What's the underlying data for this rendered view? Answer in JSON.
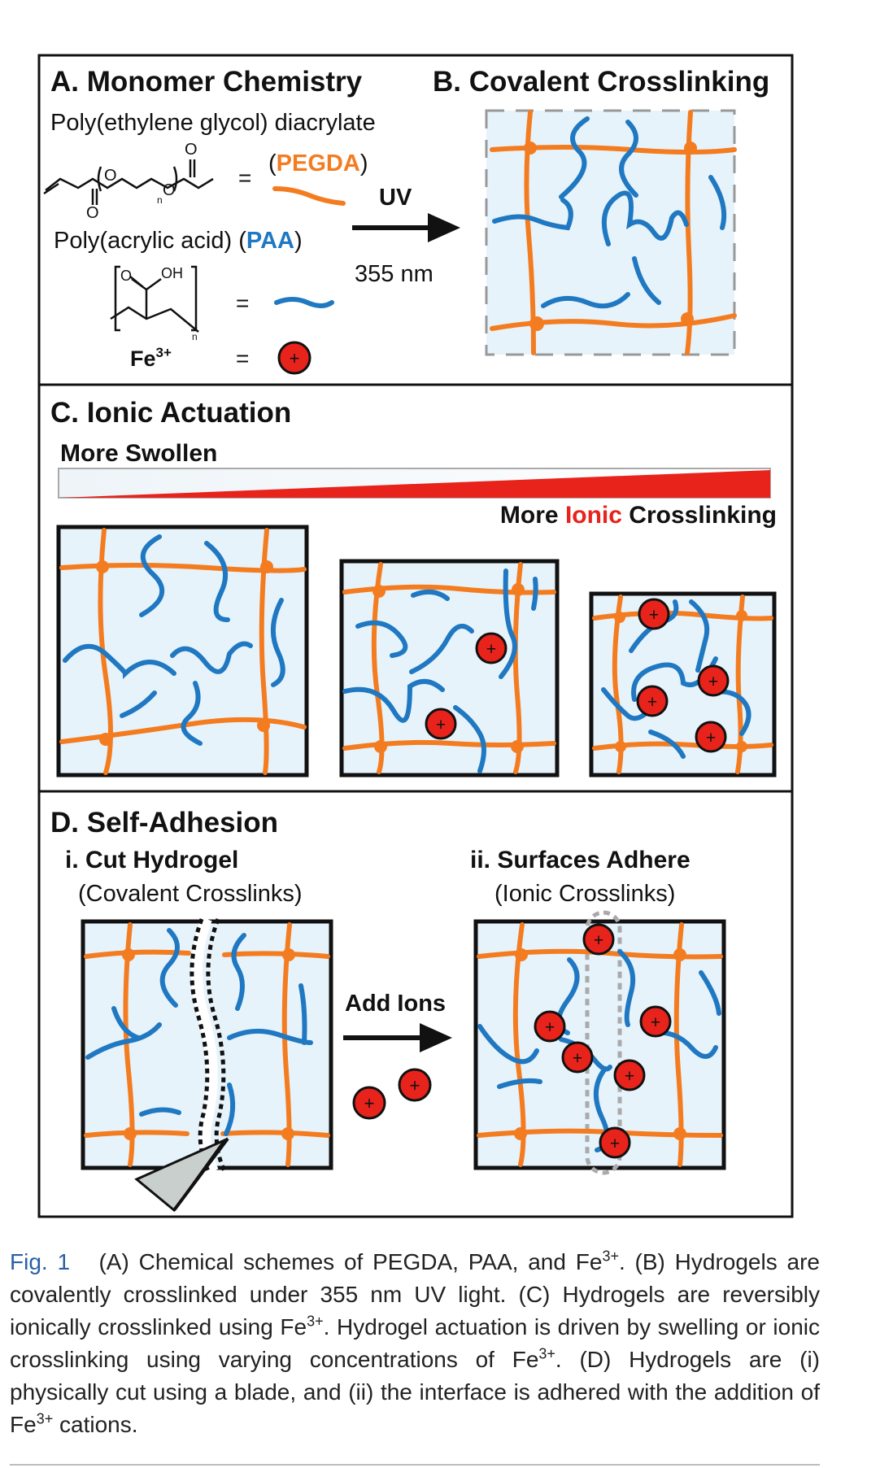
{
  "panels": {
    "a": {
      "title": "A. Monomer Chemistry",
      "pegda_name": "Poly(ethylene glycol) diacrylate",
      "pegda_abbr_open": "(",
      "pegda_abbr": "PEGDA",
      "pegda_abbr_close": ")",
      "paa_name": "Poly(acrylic acid) (",
      "paa_abbr": "PAA",
      "paa_close": ")",
      "fe_label": "Fe",
      "fe_sup": "3+",
      "equals": "=",
      "plus": "+",
      "o_label": "O",
      "oh_label": "OH",
      "n_label": "n"
    },
    "b": {
      "title": "B. Covalent Crosslinking",
      "uv": "UV",
      "wavelength": "355 nm"
    },
    "c": {
      "title": "C. Ionic Actuation",
      "swollen": "More Swollen",
      "crosslink_pre": "More ",
      "crosslink_ionic": "Ionic",
      "crosslink_post": " Crosslinking"
    },
    "d": {
      "title": "D. Self-Adhesion",
      "sub_i": "i. Cut Hydrogel",
      "sub_i_note": "(Covalent Crosslinks)",
      "sub_ii": "ii. Surfaces Adhere",
      "sub_ii_note": "(Ionic Crosslinks)",
      "add_ions": "Add Ions"
    }
  },
  "colors": {
    "pegda": "#f47c20",
    "paa": "#1f78c1",
    "gel_bg": "#e6f3fa",
    "ion": "#e8231b",
    "frame": "#111111"
  },
  "caption": {
    "label": "Fig. 1",
    "p1": "(A) Chemical schemes of PEGDA, PAA, and Fe",
    "p2": ". (B) Hydrogels are covalently crosslinked under 355 nm UV light. (C) Hydrogels are reversibly ionically crosslinked using Fe",
    "p3": ". Hydrogel actuation is driven by swelling or ionic crosslinking using varying concentrations of Fe",
    "p4": ". (D) Hydrogels are (i) physically cut using a blade, and (ii) the interface is adhered with the addition of Fe",
    "p5": " cations.",
    "sup": "3+"
  }
}
